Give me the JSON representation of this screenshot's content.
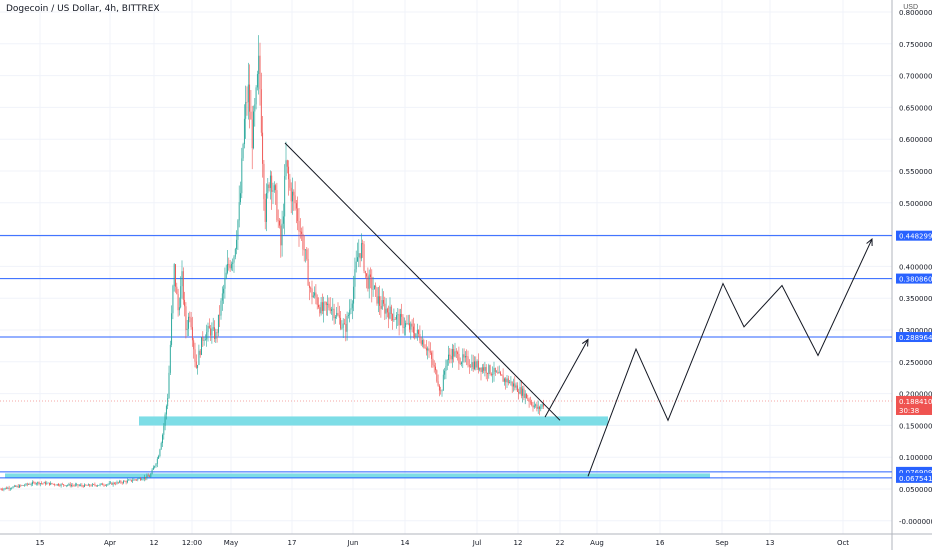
{
  "header": {
    "title": "Dogecoin / US Dollar, 4h, BITTREX",
    "currency": "USD"
  },
  "chart_data": {
    "type": "candlestick",
    "x_ticks": [
      "15",
      "Apr",
      "12",
      "12:00",
      "May",
      "17",
      "Jun",
      "14",
      "Jul",
      "12",
      "22",
      "Aug",
      "16",
      "Sep",
      "13",
      "Oct"
    ],
    "y_ticks": [
      "0.80000000",
      "0.75000000",
      "0.70000000",
      "0.65000000",
      "0.60000000",
      "0.55000000",
      "0.50000000",
      "0.45000000",
      "0.40000000",
      "0.35000000",
      "0.30000000",
      "0.25000000",
      "0.20000000",
      "0.15000000",
      "0.10000000",
      "0.05000000",
      "-0.00000000"
    ],
    "ylim": [
      -0.015,
      0.8
    ],
    "price_path": [
      [
        0,
        0.05
      ],
      [
        18,
        0.054
      ],
      [
        36,
        0.06
      ],
      [
        60,
        0.057
      ],
      [
        85,
        0.055
      ],
      [
        110,
        0.058
      ],
      [
        130,
        0.063
      ],
      [
        150,
        0.07
      ],
      [
        158,
        0.1
      ],
      [
        163,
        0.14
      ],
      [
        168,
        0.2
      ],
      [
        171,
        0.3
      ],
      [
        174,
        0.4
      ],
      [
        178,
        0.33
      ],
      [
        182,
        0.38
      ],
      [
        186,
        0.3
      ],
      [
        190,
        0.33
      ],
      [
        196,
        0.24
      ],
      [
        203,
        0.29
      ],
      [
        210,
        0.3
      ],
      [
        216,
        0.29
      ],
      [
        222,
        0.35
      ],
      [
        228,
        0.4
      ],
      [
        234,
        0.42
      ],
      [
        240,
        0.5
      ],
      [
        244,
        0.62
      ],
      [
        248,
        0.68
      ],
      [
        252,
        0.6
      ],
      [
        256,
        0.66
      ],
      [
        259,
        0.72
      ],
      [
        262,
        0.6
      ],
      [
        265,
        0.48
      ],
      [
        270,
        0.55
      ],
      [
        276,
        0.5
      ],
      [
        281,
        0.43
      ],
      [
        286,
        0.56
      ],
      [
        290,
        0.52
      ],
      [
        295,
        0.5
      ],
      [
        300,
        0.46
      ],
      [
        305,
        0.42
      ],
      [
        310,
        0.36
      ],
      [
        316,
        0.35
      ],
      [
        322,
        0.33
      ],
      [
        330,
        0.34
      ],
      [
        338,
        0.32
      ],
      [
        345,
        0.3
      ],
      [
        352,
        0.35
      ],
      [
        358,
        0.42
      ],
      [
        362,
        0.43
      ],
      [
        366,
        0.38
      ],
      [
        372,
        0.37
      ],
      [
        380,
        0.34
      ],
      [
        388,
        0.33
      ],
      [
        396,
        0.32
      ],
      [
        404,
        0.31
      ],
      [
        412,
        0.3
      ],
      [
        420,
        0.29
      ],
      [
        428,
        0.27
      ],
      [
        434,
        0.24
      ],
      [
        438,
        0.22
      ],
      [
        441,
        0.2
      ],
      [
        446,
        0.25
      ],
      [
        452,
        0.265
      ],
      [
        460,
        0.255
      ],
      [
        468,
        0.25
      ],
      [
        476,
        0.245
      ],
      [
        484,
        0.24
      ],
      [
        492,
        0.235
      ],
      [
        500,
        0.225
      ],
      [
        508,
        0.22
      ],
      [
        516,
        0.21
      ],
      [
        524,
        0.2
      ],
      [
        532,
        0.185
      ],
      [
        538,
        0.175
      ],
      [
        544,
        0.185
      ]
    ],
    "current_price": "0.18841000",
    "countdown": "30:38",
    "horizontal_levels": [
      {
        "value": 0.44829948,
        "label": "0.44829948",
        "color": "#2962ff"
      },
      {
        "value": 0.38086,
        "label": "0.38086000",
        "color": "#2962ff"
      },
      {
        "value": 0.28896447,
        "label": "0.28896447",
        "color": "#2962ff"
      },
      {
        "value": 0.07690905,
        "label": "0.07690905",
        "color": "#2962ff"
      },
      {
        "value": 0.0675412,
        "label": "0.06754120",
        "color": "#2962ff"
      }
    ],
    "support_zones": [
      {
        "top": 0.1641,
        "bottom": 0.1498,
        "color": "#7ddde6"
      },
      {
        "top": 0.0745,
        "bottom": 0.067,
        "color": "#7ddde6"
      }
    ],
    "trendline": [
      [
        285,
        0.594
      ],
      [
        560,
        0.158
      ]
    ],
    "projection_path": [
      [
        545,
        0.163
      ],
      [
        588,
        0.285
      ],
      [
        545,
        0.163
      ],
      [
        588,
        0.07
      ],
      [
        636,
        0.27
      ],
      [
        668,
        0.158
      ],
      [
        723,
        0.373
      ],
      [
        744,
        0.305
      ],
      [
        782,
        0.37
      ],
      [
        818,
        0.26
      ],
      [
        872,
        0.443
      ]
    ],
    "colors": {
      "up": "#26a69a",
      "down": "#ef5350",
      "grid": "#f0f3fa",
      "axis": "#b2b5be",
      "current": "#ef5350"
    }
  }
}
